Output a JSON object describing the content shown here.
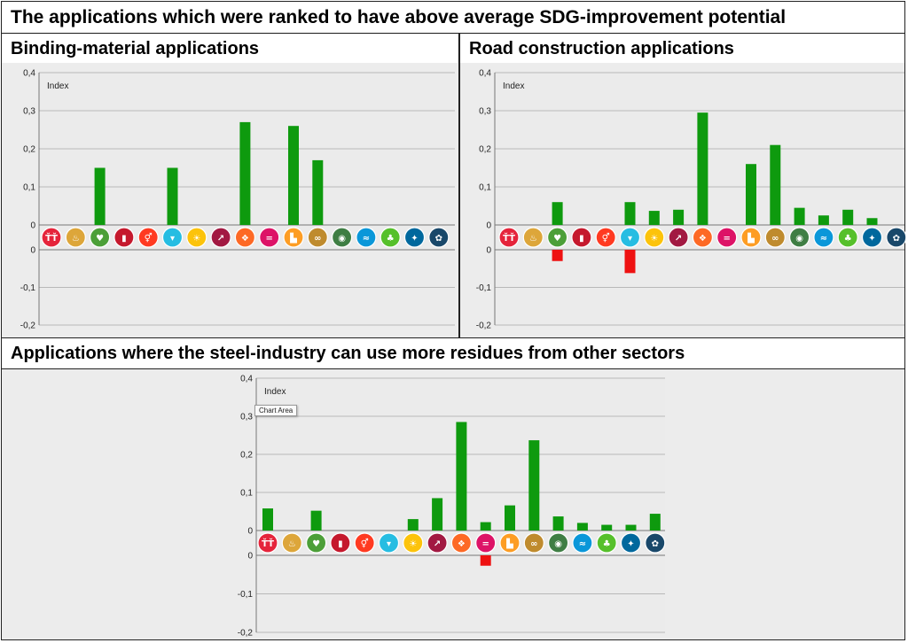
{
  "title": "The applications which were ranked to have above average SDG-improvement potential",
  "panels": {
    "binding": {
      "title": "Binding-material applications"
    },
    "road": {
      "title": "Road construction applications"
    },
    "residues": {
      "title": "Applications where the steel-industry can use more residues from other sectors"
    }
  },
  "tooltip": "Chart Area",
  "colors": {
    "positive": "#0e9a0e",
    "negative": "#ee1111",
    "grid": "#b8b8b8",
    "plot_bg": "#ebebeb"
  },
  "sdg_icons": [
    {
      "goal": 1,
      "color": "#E5243B",
      "icon": "family-icon",
      "glyph": "ŤŤ"
    },
    {
      "goal": 2,
      "color": "#DDA63A",
      "icon": "bowl-icon",
      "glyph": "♨"
    },
    {
      "goal": 3,
      "color": "#4C9F38",
      "icon": "heartbeat-icon",
      "glyph": "♥"
    },
    {
      "goal": 4,
      "color": "#C5192D",
      "icon": "book-icon",
      "glyph": "▮"
    },
    {
      "goal": 5,
      "color": "#FF3A21",
      "icon": "gender-icon",
      "glyph": "⚥"
    },
    {
      "goal": 6,
      "color": "#26BDE2",
      "icon": "water-drop-icon",
      "glyph": "▾"
    },
    {
      "goal": 7,
      "color": "#FCC30B",
      "icon": "sun-icon",
      "glyph": "☀"
    },
    {
      "goal": 8,
      "color": "#A21942",
      "icon": "growth-chart-icon",
      "glyph": "↗"
    },
    {
      "goal": 9,
      "color": "#FD6925",
      "icon": "cubes-icon",
      "glyph": "❖"
    },
    {
      "goal": 10,
      "color": "#DD1367",
      "icon": "equality-icon",
      "glyph": "="
    },
    {
      "goal": 11,
      "color": "#FD9D24",
      "icon": "buildings-icon",
      "glyph": "▙"
    },
    {
      "goal": 12,
      "color": "#BF8B2E",
      "icon": "infinity-icon",
      "glyph": "∞"
    },
    {
      "goal": 13,
      "color": "#3F7E44",
      "icon": "eye-globe-icon",
      "glyph": "◉"
    },
    {
      "goal": 14,
      "color": "#0A97D9",
      "icon": "fish-icon",
      "glyph": "≈"
    },
    {
      "goal": 15,
      "color": "#56C02B",
      "icon": "tree-icon",
      "glyph": "♣"
    },
    {
      "goal": 16,
      "color": "#00689D",
      "icon": "dove-icon",
      "glyph": "✦"
    },
    {
      "goal": 17,
      "color": "#19486A",
      "icon": "flower-icon",
      "glyph": "✿"
    }
  ],
  "chart_data": [
    {
      "id": "binding",
      "type": "bar",
      "title": "Binding-material applications",
      "ylabel": "Index",
      "upper_range": [
        0,
        0.4
      ],
      "lower_range": [
        -0.2,
        0
      ],
      "upper_ticks": [
        "0,4",
        "0,3",
        "0,2",
        "0,1",
        "0"
      ],
      "lower_ticks": [
        "0",
        "-0,1",
        "-0,2"
      ],
      "categories": [
        1,
        2,
        3,
        4,
        5,
        6,
        7,
        8,
        9,
        10,
        11,
        12,
        13,
        14,
        15,
        16,
        17
      ],
      "positive": [
        0,
        0,
        0.15,
        0,
        0,
        0.15,
        0,
        0,
        0.27,
        0,
        0.26,
        0.17,
        0,
        0,
        0,
        0,
        0
      ],
      "negative": [
        0,
        0,
        0,
        0,
        0,
        0,
        0,
        0,
        0,
        0,
        0,
        0,
        0,
        0,
        0,
        0,
        0
      ]
    },
    {
      "id": "road",
      "type": "bar",
      "title": "Road construction applications",
      "ylabel": "Index",
      "upper_range": [
        0,
        0.4
      ],
      "lower_range": [
        -0.2,
        0
      ],
      "upper_ticks": [
        "0,4",
        "0,3",
        "0,2",
        "0,1",
        "0"
      ],
      "lower_ticks": [
        "0",
        "-0,1",
        "-0,2"
      ],
      "categories": [
        1,
        2,
        3,
        4,
        5,
        6,
        7,
        8,
        9,
        10,
        11,
        12,
        13,
        14,
        15,
        16,
        17
      ],
      "positive": [
        0,
        0,
        0.06,
        0,
        0,
        0.06,
        0.037,
        0.04,
        0.295,
        0,
        0.16,
        0.21,
        0.045,
        0.025,
        0.04,
        0.018,
        0
      ],
      "negative": [
        0,
        0,
        -0.03,
        0,
        0,
        -0.062,
        0,
        0,
        0,
        0,
        0,
        0,
        0,
        0,
        0,
        0,
        0
      ]
    },
    {
      "id": "residues",
      "type": "bar",
      "title": "Applications where the steel-industry can use more residues from other sectors",
      "ylabel": "Index",
      "upper_range": [
        0,
        0.4
      ],
      "lower_range": [
        -0.2,
        0
      ],
      "upper_ticks": [
        "0,4",
        "0,3",
        "0,2",
        "0,1",
        "0"
      ],
      "lower_ticks": [
        "0",
        "-0,1",
        "-0,2"
      ],
      "categories": [
        1,
        2,
        3,
        4,
        5,
        6,
        7,
        8,
        9,
        10,
        11,
        12,
        13,
        14,
        15,
        16,
        17
      ],
      "positive": [
        0.058,
        0,
        0.052,
        0,
        0,
        0,
        0.03,
        0.085,
        0.285,
        0.022,
        0.066,
        0.237,
        0.037,
        0.02,
        0.015,
        0.015,
        0.044
      ],
      "negative": [
        0,
        0,
        0,
        0,
        0,
        0,
        0,
        0,
        0,
        -0.027,
        0,
        0,
        0,
        0,
        0,
        0,
        0
      ]
    }
  ]
}
